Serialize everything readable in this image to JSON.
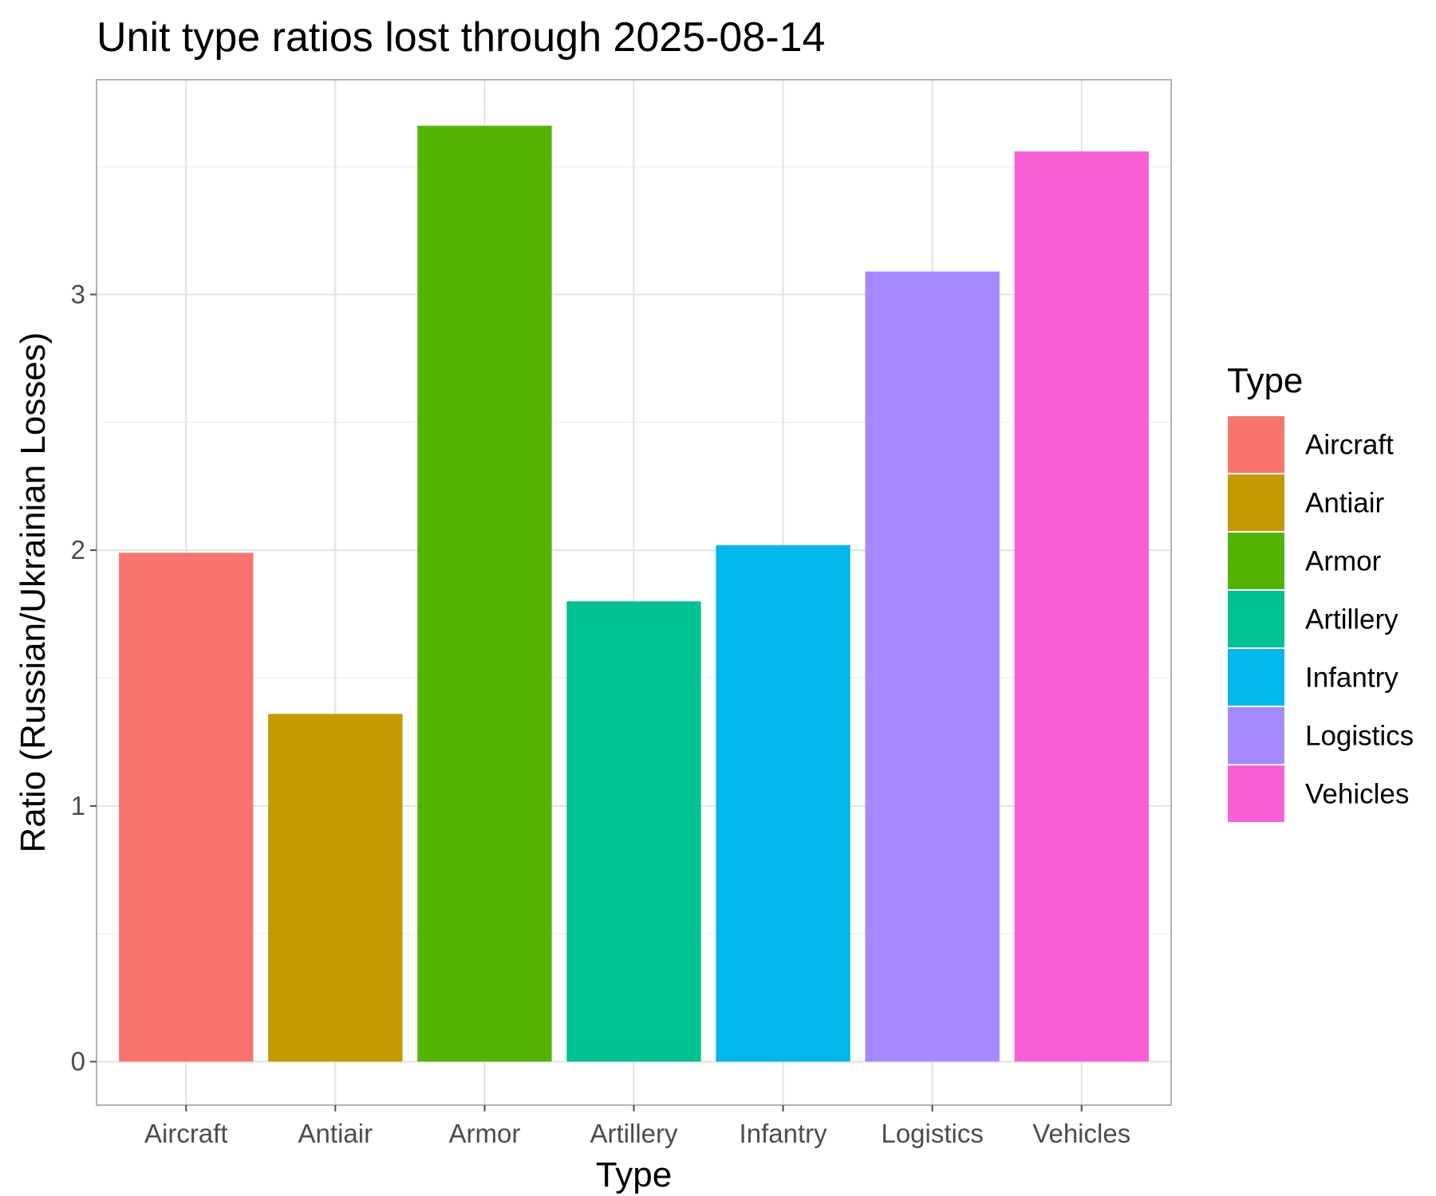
{
  "chart_data": {
    "type": "bar",
    "title": "Unit type ratios lost through 2025-08-14",
    "xlabel": "Type",
    "ylabel": "Ratio (Russian/Ukrainian Losses)",
    "categories": [
      "Aircraft",
      "Antiair",
      "Armor",
      "Artillery",
      "Infantry",
      "Logistics",
      "Vehicles"
    ],
    "values": [
      1.99,
      1.36,
      3.66,
      1.8,
      2.02,
      3.09,
      3.56
    ],
    "colors": [
      "#F8766D",
      "#C49A00",
      "#53B400",
      "#00C094",
      "#00B6EB",
      "#A58AFF",
      "#FB61D7"
    ],
    "ylim": [
      -0.17,
      3.84
    ],
    "yticks": [
      0,
      1,
      2,
      3
    ],
    "grid": true,
    "legend": {
      "title": "Type",
      "position": "right",
      "entries": [
        "Aircraft",
        "Antiair",
        "Armor",
        "Artillery",
        "Infantry",
        "Logistics",
        "Vehicles"
      ]
    }
  }
}
